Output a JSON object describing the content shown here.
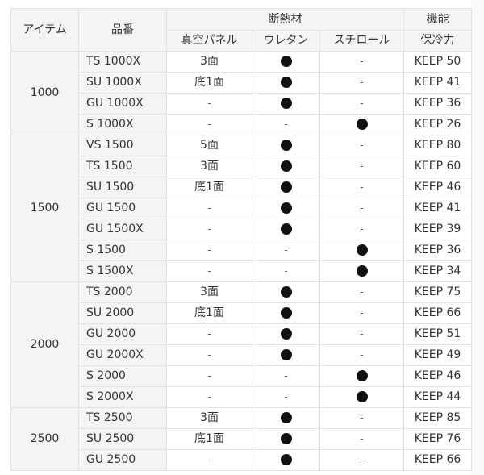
{
  "table": {
    "headers": {
      "item": "アイテム",
      "model": "品番",
      "insulation_group": "断熱材",
      "function_group": "機能",
      "vacuum_panel": "真空パネル",
      "urethane": "ウレタン",
      "styrofoam": "スチロール",
      "cold_retention": "保冷力"
    },
    "marks": {
      "yes": "●",
      "no": "-"
    },
    "groups": [
      {
        "item": "1000",
        "rows": [
          {
            "model": "TS 1000X",
            "vacuum_panel": "3面",
            "urethane": "●",
            "styrofoam": "-",
            "keep": "KEEP 50"
          },
          {
            "model": "SU 1000X",
            "vacuum_panel": "底1面",
            "urethane": "●",
            "styrofoam": "-",
            "keep": "KEEP 41"
          },
          {
            "model": "GU 1000X",
            "vacuum_panel": "-",
            "urethane": "●",
            "styrofoam": "-",
            "keep": "KEEP 36"
          },
          {
            "model": "S 1000X",
            "vacuum_panel": "-",
            "urethane": "-",
            "styrofoam": "●",
            "keep": "KEEP 26"
          }
        ]
      },
      {
        "item": "1500",
        "rows": [
          {
            "model": "VS 1500",
            "vacuum_panel": "5面",
            "urethane": "●",
            "styrofoam": "-",
            "keep": "KEEP 80"
          },
          {
            "model": "TS 1500",
            "vacuum_panel": "3面",
            "urethane": "●",
            "styrofoam": "-",
            "keep": "KEEP 60"
          },
          {
            "model": "SU 1500",
            "vacuum_panel": "底1面",
            "urethane": "●",
            "styrofoam": "-",
            "keep": "KEEP 46"
          },
          {
            "model": "GU 1500",
            "vacuum_panel": "-",
            "urethane": "●",
            "styrofoam": "-",
            "keep": "KEEP 41"
          },
          {
            "model": "GU 1500X",
            "vacuum_panel": "-",
            "urethane": "●",
            "styrofoam": "-",
            "keep": "KEEP 39"
          },
          {
            "model": "S 1500",
            "vacuum_panel": "-",
            "urethane": "-",
            "styrofoam": "●",
            "keep": "KEEP 36"
          },
          {
            "model": "S 1500X",
            "vacuum_panel": "-",
            "urethane": "-",
            "styrofoam": "●",
            "keep": "KEEP 34"
          }
        ]
      },
      {
        "item": "2000",
        "rows": [
          {
            "model": "TS 2000",
            "vacuum_panel": "3面",
            "urethane": "●",
            "styrofoam": "-",
            "keep": "KEEP 75"
          },
          {
            "model": "SU 2000",
            "vacuum_panel": "底1面",
            "urethane": "●",
            "styrofoam": "-",
            "keep": "KEEP 66"
          },
          {
            "model": "GU 2000",
            "vacuum_panel": "-",
            "urethane": "●",
            "styrofoam": "-",
            "keep": "KEEP 51"
          },
          {
            "model": "GU 2000X",
            "vacuum_panel": "-",
            "urethane": "●",
            "styrofoam": "-",
            "keep": "KEEP 49"
          },
          {
            "model": "S 2000",
            "vacuum_panel": "-",
            "urethane": "-",
            "styrofoam": "●",
            "keep": "KEEP 46"
          },
          {
            "model": "S 2000X",
            "vacuum_panel": "-",
            "urethane": "-",
            "styrofoam": "●",
            "keep": "KEEP 44"
          }
        ]
      },
      {
        "item": "2500",
        "rows": [
          {
            "model": "TS 2500",
            "vacuum_panel": "3面",
            "urethane": "●",
            "styrofoam": "-",
            "keep": "KEEP 85"
          },
          {
            "model": "SU 2500",
            "vacuum_panel": "底1面",
            "urethane": "●",
            "styrofoam": "-",
            "keep": "KEEP 76"
          },
          {
            "model": "GU 2500",
            "vacuum_panel": "-",
            "urethane": "●",
            "styrofoam": "-",
            "keep": "KEEP 66"
          }
        ]
      }
    ]
  },
  "colors": {
    "header_bg": "#f4f4f4",
    "label_bg": "#f4f4f4",
    "cell_bg": "#ffffff",
    "border": "#e2e2e2",
    "text": "#333333",
    "dot": "#111111"
  }
}
